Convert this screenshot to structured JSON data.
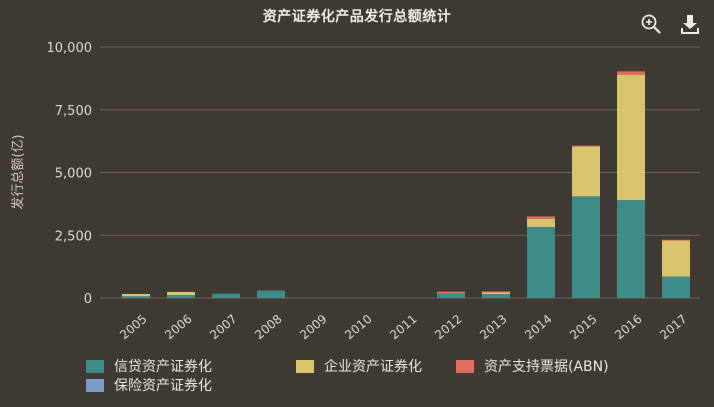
{
  "toolbar": {
    "zoom_icon": "zoom-in-icon",
    "download_icon": "download-icon"
  },
  "colors": {
    "background": "#403a35",
    "gridline": "#6a645d",
    "axis_text": "#ddd8d1",
    "series": [
      "#3e8c88",
      "#d9c46e",
      "#e06b5e",
      "#7a9cc7"
    ]
  },
  "chart_data": {
    "type": "bar",
    "stacked": true,
    "title": "资产证券化产品发行总额统计",
    "xlabel": "",
    "ylabel": "发行总额(亿)",
    "ylim": [
      0,
      10000
    ],
    "yticks": [
      0,
      2500,
      5000,
      7500,
      10000
    ],
    "ytick_labels": [
      "0",
      "2,500",
      "5,000",
      "7,500",
      "10,000"
    ],
    "grid": true,
    "legend_position": "bottom",
    "categories": [
      "2005",
      "2006",
      "2007",
      "2008",
      "2009",
      "2010",
      "2011",
      "2012",
      "2013",
      "2014",
      "2015",
      "2016",
      "2017"
    ],
    "series": [
      {
        "name": "信贷资产证券化",
        "values": [
          70,
          120,
          170,
          300,
          0,
          0,
          0,
          190,
          160,
          2830,
          4050,
          3900,
          850
        ]
      },
      {
        "name": "企业资产证券化",
        "values": [
          90,
          120,
          0,
          0,
          0,
          0,
          0,
          40,
          80,
          330,
          2000,
          5000,
          1450
        ]
      },
      {
        "name": "资产支持票据(ABN)",
        "values": [
          0,
          0,
          0,
          0,
          0,
          0,
          0,
          20,
          20,
          90,
          20,
          130,
          20
        ]
      },
      {
        "name": "保险资产证券化",
        "values": [
          0,
          0,
          0,
          0,
          0,
          0,
          0,
          0,
          0,
          0,
          0,
          0,
          0
        ]
      }
    ]
  }
}
